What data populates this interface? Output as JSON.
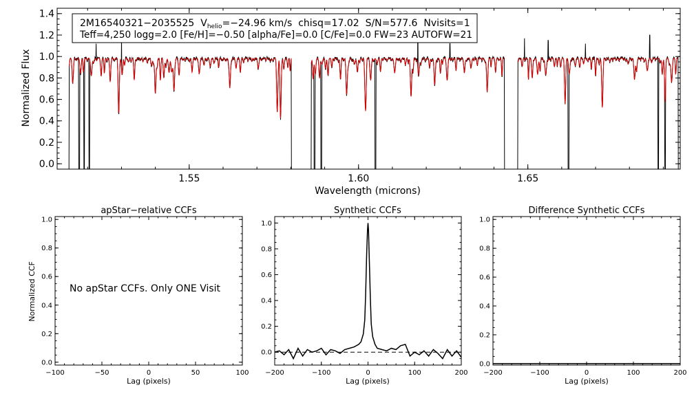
{
  "chart_data": [
    {
      "type": "line",
      "id": "spectrum",
      "xlabel": "Wavelength (microns)",
      "ylabel": "Normalized Flux",
      "xlim": [
        1.511,
        1.695
      ],
      "ylim": [
        -0.05,
        1.45
      ],
      "x_ticks": [
        1.55,
        1.6,
        1.65
      ],
      "x_tick_labels": [
        "1.55",
        "1.60",
        "1.65"
      ],
      "y_ticks": [
        0.0,
        0.2,
        0.4,
        0.6,
        0.8,
        1.0,
        1.2,
        1.4
      ],
      "y_tick_labels": [
        "0.0",
        "0.2",
        "0.4",
        "0.6",
        "0.8",
        "1.0",
        "1.2",
        "1.4"
      ],
      "annotation_line1": {
        "star": "2M16540321−2035525",
        "vhelio_label": "V",
        "vhelio_sub": "helio",
        "vhelio_value": "=−24.96 km/s",
        "chisq": "chisq=17.02",
        "snr": "S/N=577.6",
        "nvisits": "Nvisits=1"
      },
      "annotation_line2": "Teff=4,250 logg=2.0 [Fe/H]=−0.50 [alpha/Fe]=0.0 [C/Fe]=0.0 FW=23 AUTOFW=21",
      "chips": [
        [
          1.5145,
          1.5802
        ],
        [
          1.586,
          1.6432
        ],
        [
          1.647,
          1.6945
        ]
      ],
      "series": [
        {
          "name": "observed",
          "color": "#000000"
        },
        {
          "name": "model",
          "color": "#dd0000"
        }
      ],
      "strong_lines": [
        [
          1.5292,
          0.6
        ],
        [
          1.54,
          0.65
        ],
        [
          1.5455,
          0.68
        ],
        [
          1.562,
          0.7
        ],
        [
          1.576,
          0.5
        ],
        [
          1.577,
          0.55
        ],
        [
          1.5965,
          0.65
        ],
        [
          1.602,
          0.6
        ],
        [
          1.6155,
          0.62
        ],
        [
          1.6225,
          0.75
        ],
        [
          1.638,
          0.68
        ],
        [
          1.661,
          0.65
        ],
        [
          1.672,
          0.58
        ],
        [
          1.6815,
          0.8
        ],
        [
          1.6905,
          0.78
        ]
      ],
      "bad_pixel_drops": [
        1.5175,
        1.519,
        1.5205,
        1.587,
        1.589,
        1.605,
        1.662,
        1.6885,
        1.6905
      ],
      "spikes": [
        [
          1.5225,
          1.12
        ],
        [
          1.53,
          1.18
        ],
        [
          1.6175,
          1.38
        ],
        [
          1.627,
          1.12
        ],
        [
          1.649,
          1.17
        ],
        [
          1.656,
          1.15
        ],
        [
          1.667,
          1.12
        ],
        [
          1.686,
          1.2
        ]
      ]
    },
    {
      "type": "line",
      "id": "apstar",
      "title": "apStar−relative CCFs",
      "xlabel": "Lag (pixels)",
      "ylabel": "Normalized CCF",
      "xlim": [
        -100,
        100
      ],
      "ylim": [
        -0.02,
        1.02
      ],
      "x_ticks": [
        -100,
        -50,
        0,
        50,
        100
      ],
      "x_tick_labels": [
        "−100",
        "−50",
        "0",
        "50",
        "100"
      ],
      "y_ticks": [
        0.0,
        0.2,
        0.4,
        0.6,
        0.8,
        1.0
      ],
      "y_tick_labels": [
        "0.0",
        "0.2",
        "0.4",
        "0.6",
        "0.8",
        "1.0"
      ],
      "message": "No apStar CCFs.  Only ONE Visit"
    },
    {
      "type": "line",
      "id": "synthetic",
      "title": "Synthetic CCFs",
      "xlabel": "Lag (pixels)",
      "xlim": [
        -200,
        200
      ],
      "ylim": [
        -0.1,
        1.05
      ],
      "x_ticks": [
        -200,
        -100,
        0,
        100,
        200
      ],
      "x_tick_labels": [
        "−200",
        "−100",
        "0",
        "100",
        "200"
      ],
      "y_ticks": [
        0.0,
        0.2,
        0.4,
        0.6,
        0.8,
        1.0
      ],
      "y_tick_labels": [
        "0.0",
        "0.2",
        "0.4",
        "0.6",
        "0.8",
        "1.0"
      ],
      "series": [
        {
          "name": "ccf",
          "style": "solid",
          "x": [
            -200,
            -190,
            -180,
            -170,
            -160,
            -150,
            -140,
            -130,
            -120,
            -110,
            -100,
            -90,
            -80,
            -70,
            -60,
            -50,
            -40,
            -30,
            -20,
            -15,
            -10,
            -7,
            -5,
            -3,
            -1,
            0,
            1,
            3,
            5,
            7,
            10,
            15,
            20,
            30,
            40,
            50,
            60,
            70,
            80,
            90,
            100,
            110,
            120,
            130,
            140,
            150,
            160,
            170,
            180,
            190,
            200
          ],
          "y": [
            0.0,
            0.01,
            -0.02,
            0.02,
            -0.05,
            0.03,
            -0.03,
            0.02,
            0.0,
            0.01,
            0.03,
            -0.02,
            0.02,
            0.01,
            -0.01,
            0.02,
            0.03,
            0.04,
            0.06,
            0.08,
            0.14,
            0.25,
            0.45,
            0.75,
            0.95,
            1.0,
            0.95,
            0.7,
            0.42,
            0.22,
            0.12,
            0.06,
            0.03,
            0.02,
            0.01,
            0.03,
            0.02,
            0.05,
            0.06,
            -0.03,
            0.0,
            -0.02,
            0.01,
            -0.03,
            0.02,
            -0.01,
            -0.05,
            0.02,
            -0.03,
            0.01,
            -0.04
          ]
        },
        {
          "name": "zero",
          "style": "dashed",
          "x": [
            -200,
            200
          ],
          "y": [
            0.0,
            0.0
          ]
        }
      ]
    },
    {
      "type": "line",
      "id": "difference",
      "title": "Difference Synthetic CCFs",
      "xlabel": "Lag (pixels)",
      "xlim": [
        -200,
        200
      ],
      "ylim": [
        -0.01,
        1.02
      ],
      "x_ticks": [
        -200,
        -100,
        0,
        100,
        200
      ],
      "x_tick_labels": [
        "−200",
        "−100",
        "0",
        "100",
        "200"
      ],
      "y_ticks": [
        0.0,
        0.2,
        0.4,
        0.6,
        0.8,
        1.0
      ],
      "y_tick_labels": [
        "0.0",
        "0.2",
        "0.4",
        "0.6",
        "0.8",
        "1.0"
      ],
      "series": [
        {
          "name": "diff",
          "x": [
            -200,
            200
          ],
          "y": [
            0.0,
            0.0
          ]
        }
      ]
    }
  ]
}
